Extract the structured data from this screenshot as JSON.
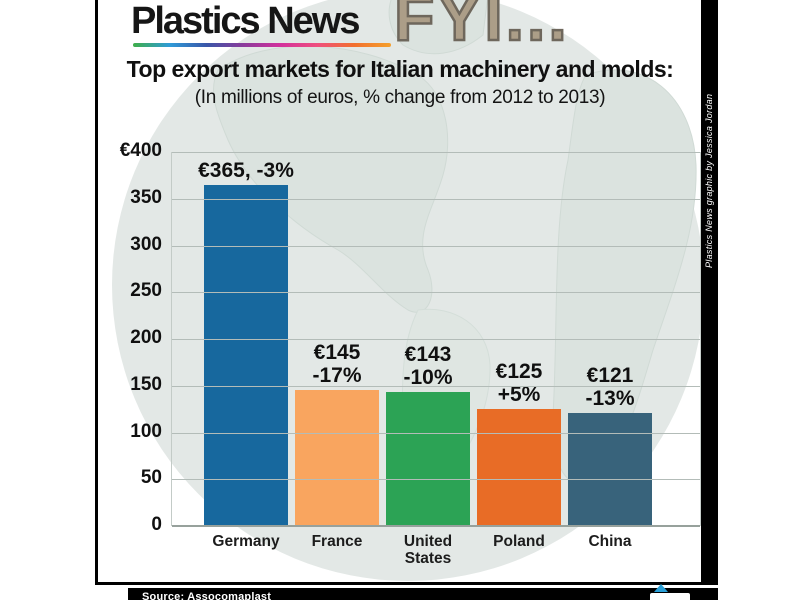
{
  "header": {
    "brand": "Plastics News",
    "fyi_label": "FYI...",
    "title": "Top export markets for Italian machinery and molds:",
    "subtitle": "(In millions of euros, % change from 2012 to 2013)"
  },
  "credit_vertical": "Plastics News graphic by Jessica Jordan",
  "footer": {
    "source": "Source: Assocomaplast"
  },
  "chart_data": {
    "type": "bar",
    "title": "Top export markets for Italian machinery and molds:",
    "subtitle": "(In millions of euros, % change from 2012 to 2013)",
    "unit": "millions of euros",
    "categories": [
      "Germany",
      "France",
      "United States",
      "Poland",
      "China"
    ],
    "values": [
      365,
      145,
      143,
      125,
      121
    ],
    "pct_change": [
      "-3%",
      "-17%",
      "-10%",
      "+5%",
      "-13%"
    ],
    "bar_labels": [
      {
        "line1": "€365, -3%",
        "line2": ""
      },
      {
        "line1": "€145",
        "line2": "-17%"
      },
      {
        "line1": "€143",
        "line2": "-10%"
      },
      {
        "line1": "€125",
        "line2": "+5%"
      },
      {
        "line1": "€121",
        "line2": "-13%"
      }
    ],
    "bar_colors": [
      "#17689e",
      "#f9a55f",
      "#2ca355",
      "#e86c26",
      "#38637b"
    ],
    "ylim": [
      0,
      400
    ],
    "ytick_step": 50,
    "yticks": [
      {
        "value": 400,
        "label": "€400"
      },
      {
        "value": 350,
        "label": "350"
      },
      {
        "value": 300,
        "label": "300"
      },
      {
        "value": 250,
        "label": "250"
      },
      {
        "value": 200,
        "label": "200"
      },
      {
        "value": 150,
        "label": "150"
      },
      {
        "value": 100,
        "label": "100"
      },
      {
        "value": 50,
        "label": "50"
      },
      {
        "value": 0,
        "label": "0"
      }
    ],
    "grid": true,
    "legend": false,
    "xlabel": "",
    "ylabel": ""
  },
  "colors": {
    "globe_ocean": "#e3e8e6",
    "globe_land": "#dbe3df",
    "fyi_fill": "#ac9e88",
    "fyi_outline": "#6e675c",
    "gridline": "#b3bcb8",
    "frame": "#000000",
    "accent_blue": "#2aa0d8"
  }
}
